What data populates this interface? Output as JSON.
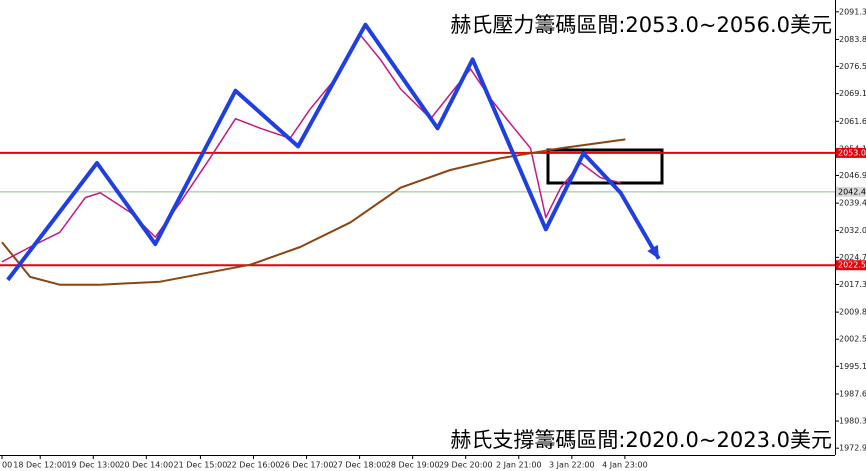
{
  "chart_data": {
    "type": "line",
    "annotations": [
      "赫氏壓力籌碼區間:2053.0~2056.0美元",
      "赫氏支撐籌碼區間:2020.0~2023.0美元"
    ],
    "xlim": [
      0,
      15.7
    ],
    "xticks": [
      {
        "value": 0,
        "label": "00"
      },
      {
        "value": 0.72,
        "label": "18 Dec 12:00"
      },
      {
        "value": 1.72,
        "label": "19 Dec 13:00"
      },
      {
        "value": 2.72,
        "label": "20 Dec 14:00"
      },
      {
        "value": 3.74,
        "label": "21 Dec 15:00"
      },
      {
        "value": 4.74,
        "label": "22 Dec 16:00"
      },
      {
        "value": 5.74,
        "label": "26 Dec 17:00"
      },
      {
        "value": 6.74,
        "label": "27 Dec 18:00"
      },
      {
        "value": 7.74,
        "label": "28 Dec 19:00"
      },
      {
        "value": 8.74,
        "label": "29 Dec 20:00"
      },
      {
        "value": 9.74,
        "label": "2 Jan 21:00"
      },
      {
        "value": 10.74,
        "label": "3 Jan 22:00"
      },
      {
        "value": 11.74,
        "label": "4 Jan 23:00"
      }
    ],
    "ylim": [
      1971.1,
      2094.5
    ],
    "yticks": [
      2091.3,
      2083.8,
      2076.5,
      2069.1,
      2061.6,
      2054.1,
      2046.9,
      {
        "value": 2039.4,
        "label": "2039.40"
      },
      {
        "value": 2032.0,
        "label": "2032.0"
      },
      2024.7,
      2017.35,
      2009.85,
      {
        "value": 2002.5,
        "label": "2002.50"
      },
      1995.15,
      1987.65,
      {
        "value": 1980.3,
        "label": "1980.30"
      },
      1972.95
    ],
    "levels": [
      {
        "value": 2053.03,
        "color": "#e8000b"
      },
      {
        "value": 2022.57,
        "color": "#e8000b"
      },
      {
        "value": 2042.46,
        "color": "#8fbc8f"
      }
    ],
    "series": [
      {
        "color": "#c71585",
        "x": [
          0,
          0.53,
          1.09,
          1.57,
          1.85,
          2.42,
          2.89,
          3.36,
          3.92,
          4.4,
          4.87,
          5.43,
          5.81,
          6.28,
          6.75,
          7.13,
          7.51,
          8.08,
          8.45,
          8.83,
          9.21,
          9.58,
          9.96,
          10.25,
          10.53,
          10.91,
          11.28,
          11.66
        ],
        "values": [
          2023.5,
          2027.5,
          2031.5,
          2040.9,
          2042.2,
          2036.9,
          2030.2,
          2039.6,
          2051.6,
          2062.3,
          2059.7,
          2057.0,
          2065.0,
          2073.1,
          2085.1,
          2078.4,
          2070.4,
          2062.3,
          2069.0,
          2075.8,
          2067.7,
          2061.0,
          2054.3,
          2035.5,
          2043.6,
          2050.3,
          2046.3,
          2044.9
        ]
      },
      {
        "color": "#8b4513",
        "x": [
          0,
          0.53,
          1.09,
          1.85,
          2.98,
          4.68,
          5.62,
          6.57,
          7.51,
          8.45,
          9.4,
          10.53,
          11.75
        ],
        "values": [
          2028.8,
          2019.4,
          2017.3,
          2017.3,
          2018.1,
          2022.7,
          2027.5,
          2034.2,
          2043.6,
          2048.4,
          2051.6,
          2054.3,
          2056.7
        ]
      },
      {
        "color": "#1f3fe0",
        "x": [
          0.11,
          1.79,
          2.89,
          4.4,
          5.58,
          6.85,
          8.21,
          8.87,
          10.25,
          10.96,
          11.66,
          12.38
        ],
        "values": [
          2018.6,
          2050.3,
          2028.3,
          2069.9,
          2054.8,
          2087.8,
          2059.7,
          2078.4,
          2032.3,
          2052.9,
          2042.2,
          2024.3
        ]
      }
    ]
  }
}
